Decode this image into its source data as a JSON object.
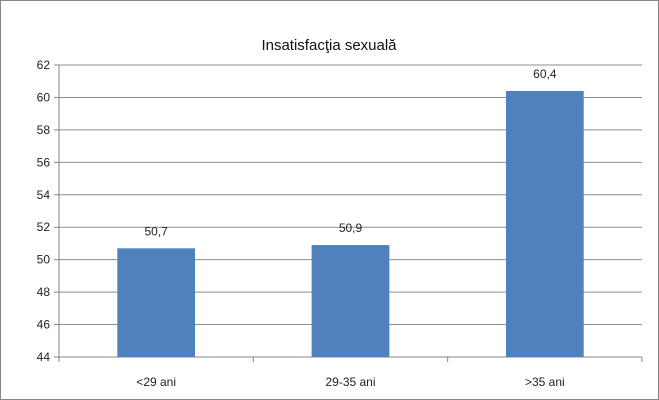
{
  "chart_data": {
    "type": "bar",
    "title": "Insatisfacţia sexuală",
    "xlabel": "",
    "ylabel": "",
    "categories": [
      "<29 ani",
      "29-35 ani",
      ">35 ani"
    ],
    "values": [
      50.7,
      50.9,
      60.4
    ],
    "value_labels": [
      "50,7",
      "50,9",
      "60,4"
    ],
    "ylim": [
      44,
      62
    ],
    "yticks": [
      44,
      46,
      48,
      50,
      52,
      54,
      56,
      58,
      60,
      62
    ],
    "grid": true,
    "legend": "none",
    "bar_color": "#4f81bd",
    "grid_color": "#8c8c8c",
    "axis_color": "#868686"
  }
}
